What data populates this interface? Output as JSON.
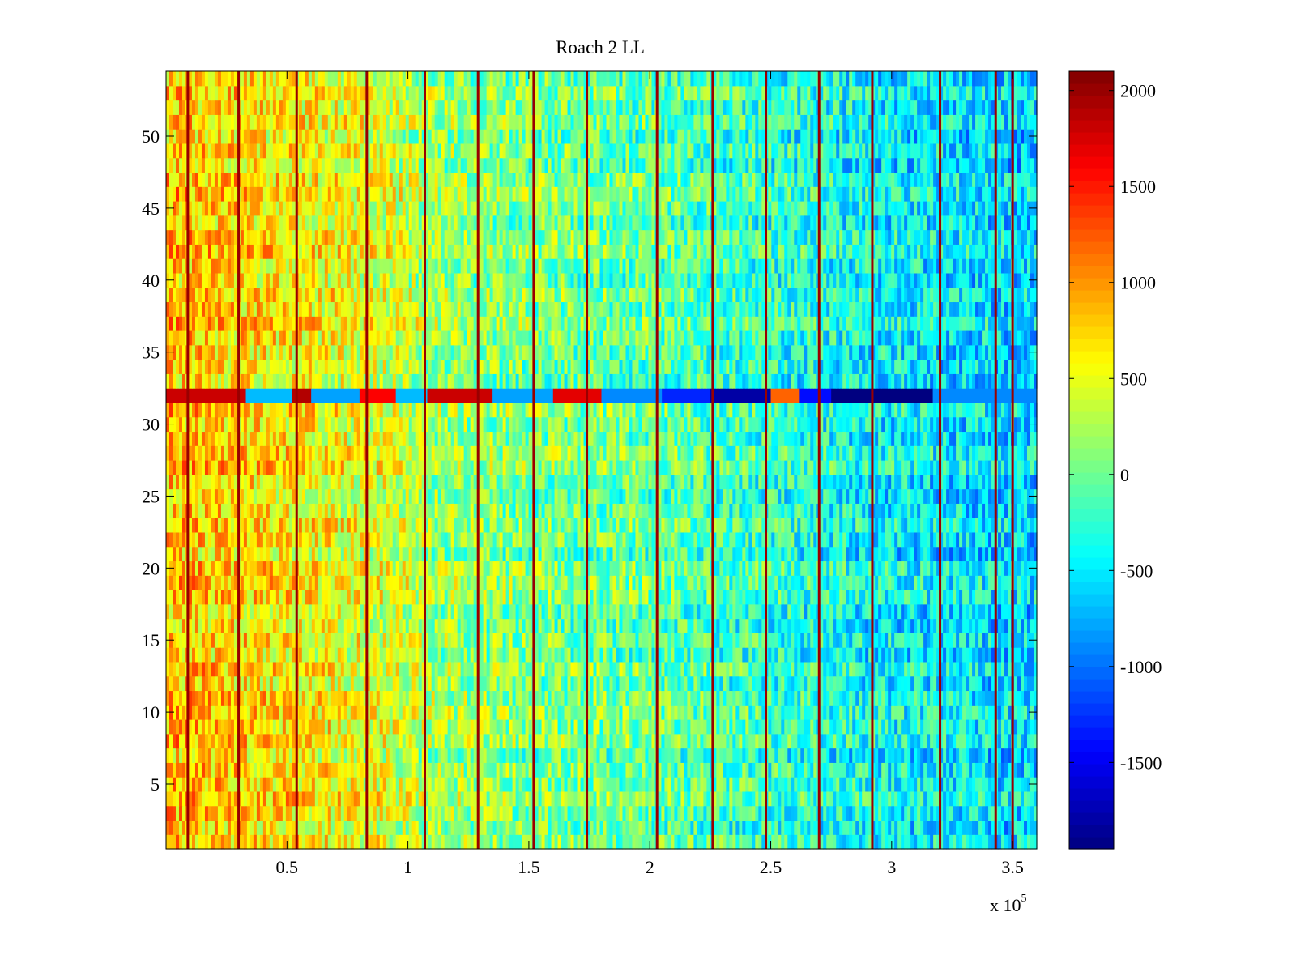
{
  "chart_data": {
    "type": "heatmap",
    "title": "Roach 2 LL",
    "xlabel": "",
    "ylabel": "",
    "x_multiplier_label": "x 10",
    "x_multiplier_exponent": "5",
    "xlim": [
      0,
      3.6
    ],
    "ylim": [
      0.5,
      54.5
    ],
    "x_ticks": [
      {
        "value": 0.5,
        "label": "0.5"
      },
      {
        "value": 1,
        "label": "1"
      },
      {
        "value": 1.5,
        "label": "1.5"
      },
      {
        "value": 2,
        "label": "2"
      },
      {
        "value": 2.5,
        "label": "2.5"
      },
      {
        "value": 3,
        "label": "3"
      },
      {
        "value": 3.5,
        "label": "3.5"
      }
    ],
    "y_ticks": [
      {
        "value": 5,
        "label": "5"
      },
      {
        "value": 10,
        "label": "10"
      },
      {
        "value": 15,
        "label": "15"
      },
      {
        "value": 20,
        "label": "20"
      },
      {
        "value": 25,
        "label": "25"
      },
      {
        "value": 30,
        "label": "30"
      },
      {
        "value": 35,
        "label": "35"
      },
      {
        "value": 40,
        "label": "40"
      },
      {
        "value": 45,
        "label": "45"
      },
      {
        "value": 50,
        "label": "50"
      }
    ],
    "rows": 54,
    "colormap": "jet",
    "clim": [
      -1950,
      2100
    ],
    "colorbar_ticks": [
      {
        "value": 2000,
        "label": "2000"
      },
      {
        "value": 1500,
        "label": "1500"
      },
      {
        "value": 1000,
        "label": "1000"
      },
      {
        "value": 500,
        "label": "500"
      },
      {
        "value": 0,
        "label": "0"
      },
      {
        "value": -500,
        "label": "-500"
      },
      {
        "value": -1000,
        "label": "-1000"
      },
      {
        "value": -1500,
        "label": "-1500"
      }
    ],
    "trend_profile": [
      {
        "x": 0.0,
        "level": 850
      },
      {
        "x": 0.5,
        "level": 650
      },
      {
        "x": 0.9,
        "level": 450
      },
      {
        "x": 1.1,
        "level": 200
      },
      {
        "x": 1.5,
        "level": 50
      },
      {
        "x": 2.0,
        "level": -50
      },
      {
        "x": 2.5,
        "level": -250
      },
      {
        "x": 3.0,
        "level": -450
      },
      {
        "x": 3.6,
        "level": -600
      }
    ],
    "high_columns_x": [
      0.09,
      0.3,
      0.54,
      0.83,
      1.07,
      1.29,
      1.52,
      1.74,
      2.03,
      2.26,
      2.48,
      2.7,
      2.92,
      3.2,
      3.43,
      3.5
    ],
    "row_32_segments": [
      {
        "from": 0.0,
        "to": 0.33,
        "value": 1800
      },
      {
        "from": 0.33,
        "to": 0.52,
        "value": -700
      },
      {
        "from": 0.52,
        "to": 0.6,
        "value": 1900
      },
      {
        "from": 0.6,
        "to": 0.8,
        "value": -800
      },
      {
        "from": 0.8,
        "to": 0.95,
        "value": 1600
      },
      {
        "from": 0.95,
        "to": 1.08,
        "value": -700
      },
      {
        "from": 1.08,
        "to": 1.35,
        "value": 1800
      },
      {
        "from": 1.35,
        "to": 1.6,
        "value": -800
      },
      {
        "from": 1.6,
        "to": 1.8,
        "value": 1700
      },
      {
        "from": 1.8,
        "to": 2.05,
        "value": -900
      },
      {
        "from": 2.05,
        "to": 2.25,
        "value": -1300
      },
      {
        "from": 2.25,
        "to": 2.5,
        "value": -1800
      },
      {
        "from": 2.5,
        "to": 2.62,
        "value": 1200
      },
      {
        "from": 2.62,
        "to": 2.75,
        "value": -1400
      },
      {
        "from": 2.75,
        "to": 3.17,
        "value": -1950
      },
      {
        "from": 3.17,
        "to": 3.6,
        "value": -900
      }
    ]
  }
}
